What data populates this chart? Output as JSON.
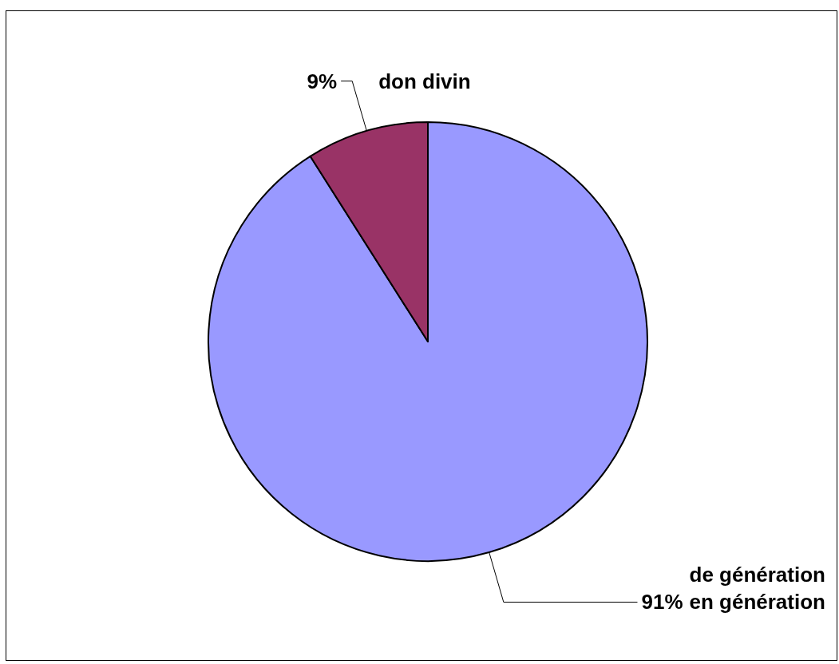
{
  "chart_data": {
    "type": "pie",
    "categories": [
      "de génération en génération",
      "don divin"
    ],
    "values": [
      91,
      9
    ],
    "colors": [
      "#9999ff",
      "#993366"
    ],
    "value_labels": [
      "91%",
      "9%"
    ]
  }
}
